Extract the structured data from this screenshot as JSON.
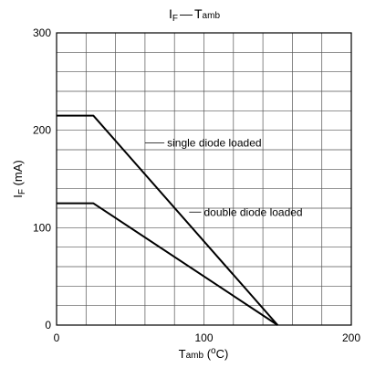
{
  "chart_data": {
    "type": "line",
    "title": {
      "main": "I",
      "sub": "F",
      "sep": "—",
      "tail": "T",
      "tail_sub": "amb"
    },
    "xlabel": {
      "main": "T",
      "sub": "amb",
      "rest": " (",
      "sup": "o",
      "unit": "C)"
    },
    "ylabel": {
      "main": "I",
      "sub": "F",
      "unit": " (mA)"
    },
    "xlim": [
      0,
      200
    ],
    "ylim": [
      0,
      300
    ],
    "x_ticks": [
      0,
      100,
      200
    ],
    "y_ticks": [
      0,
      100,
      200,
      300
    ],
    "grid": true,
    "series": [
      {
        "name": "single diode loaded",
        "x": [
          0,
          25,
          150
        ],
        "y": [
          215,
          215,
          0
        ]
      },
      {
        "name": "double diode loaded",
        "x": [
          0,
          25,
          150
        ],
        "y": [
          125,
          125,
          0
        ]
      }
    ],
    "annotations": [
      {
        "text": "single diode loaded",
        "x": 60,
        "y": 187,
        "label_x": 75
      },
      {
        "text": "double diode loaded",
        "x": 90,
        "y": 116,
        "label_x": 100
      }
    ]
  }
}
